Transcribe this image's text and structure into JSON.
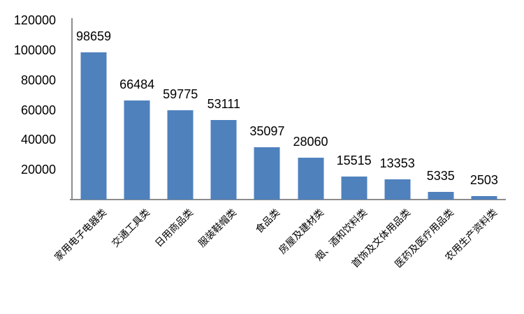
{
  "chart_data": {
    "type": "bar",
    "title": "",
    "xlabel": "",
    "ylabel": "",
    "categories": [
      "家用电子电器类",
      "交通工具类",
      "日用商品类",
      "服装鞋帽类",
      "食品类",
      "房屋及建材类",
      "烟、酒和饮料类",
      "首饰及文体用品类",
      "医药及医疗用品类",
      "农用生产资料类"
    ],
    "values": [
      98659,
      66484,
      59775,
      53111,
      35097,
      28060,
      15515,
      13353,
      5335,
      2503
    ],
    "data_labels": [
      "98659",
      "66484",
      "59775",
      "53111",
      "35097",
      "28060",
      "15515",
      "13353",
      "5335",
      "2503"
    ],
    "ylim": [
      0,
      120000
    ],
    "y_ticks": [
      20000,
      40000,
      60000,
      80000,
      100000,
      120000
    ],
    "y_tick_labels": [
      "20000",
      "40000",
      "60000",
      "80000",
      "100000",
      "120000"
    ],
    "grid": false,
    "legend": false,
    "bar_color": "#4F81BD",
    "axis_color": "#8C8C8C",
    "text_color": "#000000",
    "background_color": "#FFFFFF"
  }
}
